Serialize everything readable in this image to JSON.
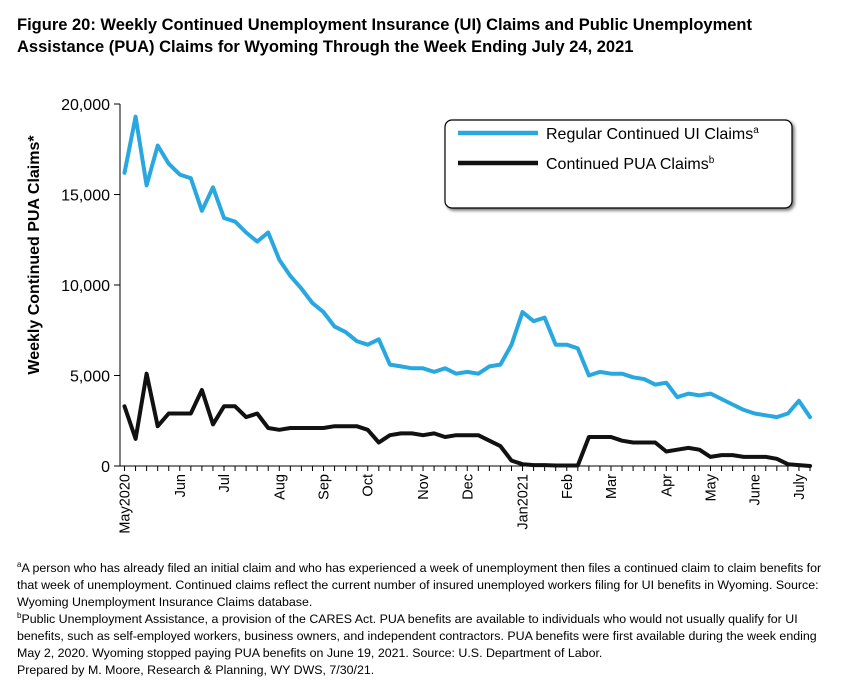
{
  "title": {
    "line1": "Figure 20: Weekly Continued Unemployment Insurance (UI) Claims and Public Unemployment",
    "line2": "Assistance (PUA) Claims for Wyoming Through the Week Ending July 24, 2021"
  },
  "chart_data": {
    "type": "line",
    "title": "Figure 20: Weekly Continued Unemployment Insurance (UI) Claims and Public Unemployment Assistance (PUA) Claims for Wyoming Through the Week Ending July 24, 2021",
    "ylabel": "Weekly Continued PUA Claims*",
    "xlabel": "",
    "ylim": [
      0,
      20000
    ],
    "yticks": [
      0,
      5000,
      10000,
      15000,
      20000
    ],
    "ytick_labels": [
      "0",
      "5,000",
      "10,000",
      "15,000",
      "20,000"
    ],
    "x_tick_labels": [
      "May2020",
      "Jun",
      "Jul",
      "Aug",
      "Sep",
      "Oct",
      "Nov",
      "Dec",
      "Jan2021",
      "Feb",
      "Mar",
      "Apr",
      "May",
      "June",
      "July"
    ],
    "x_tick_weeks": [
      0,
      5,
      9,
      14,
      18,
      22,
      27,
      31,
      36,
      40,
      44,
      49,
      53,
      57,
      61
    ],
    "legend_position": "top-right",
    "grid": false,
    "series": [
      {
        "name": "Regular Continued UI Claims",
        "name_sup": "a",
        "color": "#29a8e0",
        "values": [
          16200,
          19300,
          15500,
          17700,
          16700,
          16100,
          15900,
          14100,
          15400,
          13700,
          13500,
          12900,
          12400,
          12900,
          11400,
          10500,
          9800,
          9000,
          8500,
          7700,
          7400,
          6900,
          6700,
          7000,
          5600,
          5500,
          5400,
          5400,
          5200,
          5400,
          5100,
          5200,
          5100,
          5500,
          5600,
          6700,
          8500,
          8000,
          8200,
          6700,
          6700,
          6500,
          5000,
          5200,
          5100,
          5100,
          4900,
          4800,
          4500,
          4600,
          3800,
          4000,
          3900,
          4000,
          3700,
          3400,
          3100,
          2900,
          2800,
          2700,
          2900,
          3600,
          2700
        ]
      },
      {
        "name": "Continued PUA Claims",
        "name_sup": "b",
        "color": "#111111",
        "values": [
          3300,
          1500,
          5100,
          2200,
          2900,
          2900,
          2900,
          4200,
          2300,
          3300,
          3300,
          2700,
          2900,
          2100,
          2000,
          2100,
          2100,
          2100,
          2100,
          2200,
          2200,
          2200,
          2000,
          1300,
          1700,
          1800,
          1800,
          1700,
          1800,
          1600,
          1700,
          1700,
          1700,
          1400,
          1100,
          300,
          100,
          50,
          50,
          30,
          30,
          30,
          1600,
          1600,
          1600,
          1400,
          1300,
          1300,
          1300,
          800,
          900,
          1000,
          900,
          500,
          600,
          600,
          500,
          500,
          500,
          400,
          100,
          50,
          0
        ]
      }
    ]
  },
  "notes": {
    "a_marker": "a",
    "a_text": "A person who has already filed an initial claim and who has experienced a week of unemployment then files a continued claim to claim benefits for that week of unemployment. Continued claims reflect the current number of insured unemployed workers filing for UI benefits in Wyoming. Source: Wyoming Unemployment Insurance Claims database.",
    "b_marker": "b",
    "b_text": "Public Unemployment Assistance, a provision of the CARES Act. PUA benefits are available to individuals who would not usually qualify for UI benefits, such as self-employed workers, business owners, and independent contractors. PUA benefits were first available during the week ending May 2, 2020. Wyoming stopped paying PUA benefits on June 19, 2021. Source: U.S. Department of Labor.",
    "prepared_by": "Prepared by M. Moore, Research & Planning, WY DWS, 7/30/21."
  }
}
